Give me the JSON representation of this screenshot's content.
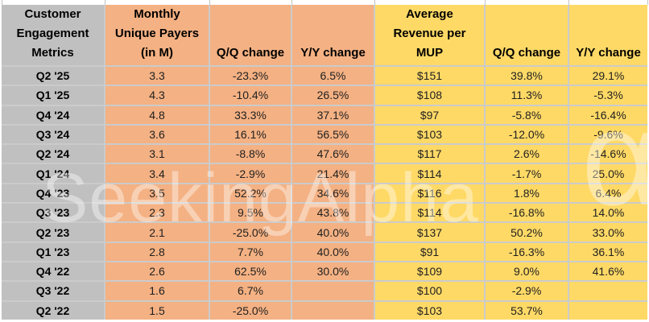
{
  "chart_data": {
    "type": "table",
    "title": "Customer Engagement Metrics",
    "columns": [
      "Customer\nEngagement\nMetrics",
      "Monthly\nUnique Payers\n(in M)",
      "Q/Q change",
      "Y/Y change",
      "Average\nRevenue per\nMUP",
      "Q/Q change",
      "Y/Y change"
    ],
    "rows": [
      [
        "Q2 '25",
        "3.3",
        "-23.3%",
        "6.5%",
        "$151",
        "39.8%",
        "29.1%"
      ],
      [
        "Q1 '25",
        "4.3",
        "-10.4%",
        "26.5%",
        "$108",
        "11.3%",
        "-5.3%"
      ],
      [
        "Q4 '24",
        "4.8",
        "33.3%",
        "37.1%",
        "$97",
        "-5.8%",
        "-16.4%"
      ],
      [
        "Q3 '24",
        "3.6",
        "16.1%",
        "56.5%",
        "$103",
        "-12.0%",
        "-9.6%"
      ],
      [
        "Q2 '24",
        "3.1",
        "-8.8%",
        "47.6%",
        "$117",
        "2.6%",
        "-14.6%"
      ],
      [
        "Q1 '24",
        "3.4",
        "-2.9%",
        "21.4%",
        "$114",
        "-1.7%",
        "25.0%"
      ],
      [
        "Q4 '23",
        "3.5",
        "52.2%",
        "34.6%",
        "$116",
        "1.8%",
        "6.4%"
      ],
      [
        "Q3 '23",
        "2.3",
        "9.5%",
        "43.8%",
        "$114",
        "-16.8%",
        "14.0%"
      ],
      [
        "Q2 '23",
        "2.1",
        "-25.0%",
        "40.0%",
        "$137",
        "50.2%",
        "33.0%"
      ],
      [
        "Q1 '23",
        "2.8",
        "7.7%",
        "40.0%",
        "$91",
        "-16.3%",
        "36.1%"
      ],
      [
        "Q4 '22",
        "2.6",
        "62.5%",
        "30.0%",
        "$109",
        "9.0%",
        "41.6%"
      ],
      [
        "Q3 '22",
        "1.6",
        "6.7%",
        "",
        "$100",
        "-2.9%",
        ""
      ],
      [
        "Q2 '22",
        "1.5",
        "-25.0%",
        "",
        "$103",
        "53.7%",
        ""
      ]
    ]
  },
  "watermark": {
    "text": "SeekingAlpha",
    "alpha_glyph": "α"
  },
  "colors": {
    "row_label_bg": "#c0c0c0",
    "payers_bg": "#f4b183",
    "revenue_bg": "#ffd966",
    "gridline": "#cbcbcb",
    "text": "#1f1f1f"
  }
}
